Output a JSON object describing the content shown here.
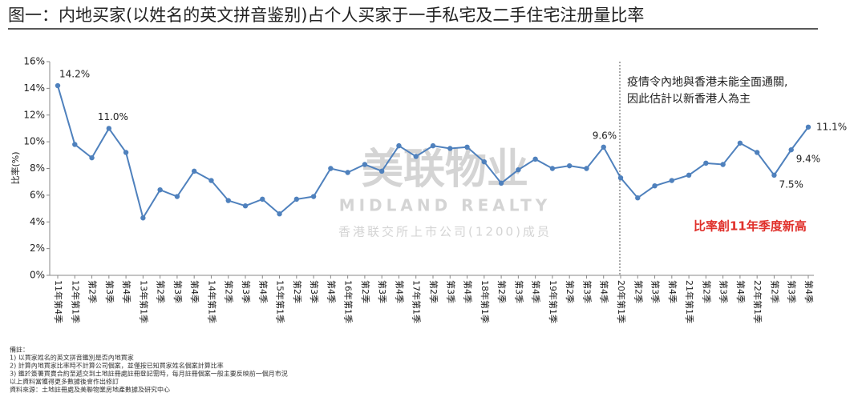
{
  "chart_data": {
    "type": "line",
    "title": "图一：内地买家(以姓名的英文拼音鉴别)占个人买家于一手私宅及二手住宅注册量比率",
    "y_label": "比率(%)",
    "categories": [
      "11年第4季",
      "12年第1季",
      "第2季",
      "第3季",
      "第4季",
      "13年第1季",
      "第2季",
      "第3季",
      "第4季",
      "14年第1季",
      "第2季",
      "第3季",
      "第4季",
      "15年第1季",
      "第2季",
      "第3季",
      "第4季",
      "16年第1季",
      "第2季",
      "第3季",
      "第4季",
      "17年第1季",
      "第2季",
      "第3季",
      "第4季",
      "18年第1季",
      "第2季",
      "第3季",
      "第4季",
      "19年第1季",
      "第2季",
      "第3季",
      "第4季",
      "20年第1季",
      "第2季",
      "第3季",
      "第4季",
      "21年第1季",
      "第2季",
      "第3季",
      "第4季",
      "22年第1季",
      "第2季",
      "第3季",
      "第4季"
    ],
    "series": [
      {
        "color": "#4f81bd",
        "values": [
          14.2,
          9.8,
          8.8,
          11.0,
          9.2,
          4.3,
          6.4,
          5.9,
          7.8,
          7.1,
          5.6,
          5.2,
          5.7,
          4.6,
          5.7,
          5.9,
          8.0,
          7.7,
          8.3,
          7.8,
          9.7,
          8.9,
          9.7,
          9.5,
          9.6,
          8.5,
          6.9,
          7.9,
          8.7,
          8.0,
          8.2,
          8.0,
          9.6,
          7.3,
          5.8,
          6.7,
          7.1,
          7.5,
          8.4,
          8.3,
          9.9,
          9.2,
          7.5,
          9.4,
          11.1
        ],
        "value_labels": [
          "14.2%",
          null,
          null,
          "11.0%",
          null,
          null,
          null,
          null,
          null,
          null,
          null,
          null,
          null,
          null,
          null,
          null,
          null,
          null,
          null,
          null,
          null,
          null,
          null,
          null,
          null,
          null,
          null,
          null,
          null,
          null,
          null,
          null,
          "9.6%",
          null,
          null,
          null,
          null,
          null,
          null,
          null,
          null,
          null,
          "7.5%",
          "9.4%",
          "11.1%"
        ]
      }
    ],
    "ylim": [
      0,
      16
    ],
    "yticks": [
      {
        "value": 0,
        "label": "0%"
      },
      {
        "value": 2,
        "label": "2%"
      },
      {
        "value": 4,
        "label": "4%"
      },
      {
        "value": 6,
        "label": "6%"
      },
      {
        "value": 8,
        "label": "8%"
      },
      {
        "value": 10,
        "label": "10%"
      },
      {
        "value": 12,
        "label": "12%"
      },
      {
        "value": 14,
        "label": "14%"
      },
      {
        "value": 16,
        "label": "16%"
      }
    ],
    "annotations": [
      "疫情令內地與香港未能全面通關,",
      "因此估計以新香港人為主",
      "比率創11年季度新高"
    ],
    "watermark": [
      "美联物业",
      "MIDLAND REALTY",
      "香港联交所上市公司(1200)成员"
    ],
    "notes": [
      "備註：",
      "1) 以買家姓名的英文拼音鑑別是否內地買家",
      "2) 計算內地買家比率時不計算公司個案，並僅按已知買家姓名個案計算比率",
      "3) 鑑於簽署買賣合約至遞交到土地註冊處註冊登記需時，每月註冊個案一般主要反映前一個月市況",
      "以上資料當獲得更多數據後會作出修訂",
      "資料來源：土地註冊處及美聯物業房地產數據及研究中心"
    ]
  }
}
